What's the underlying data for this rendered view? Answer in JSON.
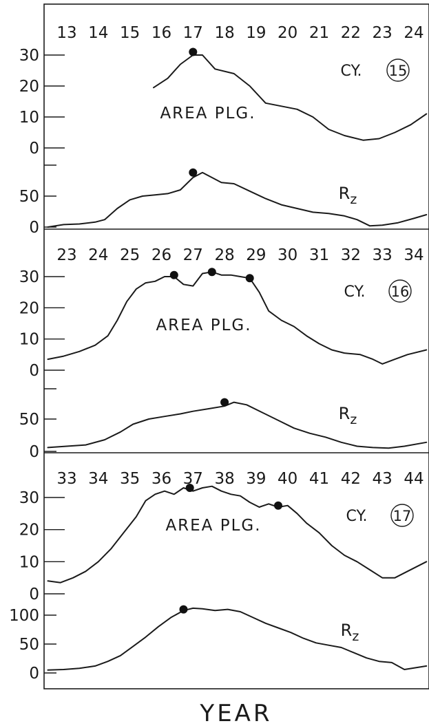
{
  "xlabel": "YEAR",
  "chart_data": [
    {
      "type": "line",
      "cycle_label": "CY.",
      "cycle_number": "15",
      "year_ticks": [
        "13",
        "14",
        "15",
        "16",
        "17",
        "18",
        "19",
        "20",
        "21",
        "22",
        "23",
        "24"
      ],
      "area_axis": {
        "tick_labels": [
          "0",
          "10",
          "20",
          "30"
        ],
        "ylim": [
          0,
          35
        ]
      },
      "rz_axis": {
        "tick_labels": [
          "0",
          "50"
        ],
        "ylim": [
          0,
          100
        ]
      },
      "series": [
        {
          "name": "AREA PLG.",
          "x": [
            15.75,
            16.2,
            16.6,
            17.0,
            17.3,
            17.7,
            18.3,
            18.8,
            19.3,
            19.8,
            20.3,
            20.8,
            21.3,
            21.8,
            22.4,
            22.9,
            23.4,
            23.9,
            24.4
          ],
          "values": [
            19.5,
            22.5,
            27,
            30,
            30,
            25.5,
            24,
            20,
            14.5,
            13.5,
            12.5,
            10,
            6,
            4,
            2.5,
            3,
            5,
            7.5,
            11
          ],
          "peaks": [
            {
              "x": 17.0,
              "y": 31
            }
          ]
        },
        {
          "name": "Rz",
          "x": [
            12.4,
            12.9,
            13.4,
            13.9,
            14.2,
            14.6,
            15.0,
            15.4,
            15.8,
            16.2,
            16.6,
            17.0,
            17.3,
            17.6,
            17.9,
            18.3,
            18.8,
            19.3,
            19.8,
            20.3,
            20.8,
            21.3,
            21.8,
            22.2,
            22.6,
            23.0,
            23.5,
            24.0,
            24.4
          ],
          "values": [
            0,
            4,
            5,
            8,
            12,
            30,
            44,
            50,
            52,
            54,
            60,
            80,
            88,
            80,
            72,
            70,
            58,
            46,
            36,
            30,
            24,
            22,
            18,
            12,
            2,
            3,
            7,
            14,
            20
          ],
          "peaks": [
            {
              "x": 17.0,
              "y": 88
            }
          ]
        }
      ]
    },
    {
      "type": "line",
      "cycle_label": "CY.",
      "cycle_number": "16",
      "year_ticks": [
        "23",
        "24",
        "25",
        "26",
        "27",
        "28",
        "29",
        "30",
        "31",
        "32",
        "33",
        "34"
      ],
      "area_axis": {
        "tick_labels": [
          "0",
          "10",
          "20",
          "30"
        ],
        "ylim": [
          0,
          35
        ]
      },
      "rz_axis": {
        "tick_labels": [
          "0",
          "50"
        ],
        "ylim": [
          0,
          100
        ]
      },
      "series": [
        {
          "name": "AREA PLG.",
          "x": [
            22.4,
            22.9,
            23.4,
            23.9,
            24.3,
            24.6,
            24.9,
            25.2,
            25.5,
            25.8,
            26.1,
            26.4,
            26.7,
            27.0,
            27.3,
            27.6,
            27.9,
            28.2,
            28.5,
            28.8,
            29.1,
            29.4,
            29.8,
            30.2,
            30.6,
            31.0,
            31.4,
            31.8,
            32.3,
            32.7,
            33.0,
            33.4,
            33.8,
            34.4
          ],
          "values": [
            3.5,
            4.5,
            6,
            8,
            11,
            16,
            22,
            26,
            28,
            28.5,
            30,
            30,
            27.5,
            27,
            31,
            31.5,
            30.5,
            30.5,
            30,
            29.5,
            25,
            19,
            16,
            14,
            11,
            8.5,
            6.5,
            5.5,
            5,
            3.5,
            2,
            3.5,
            5,
            6.5
          ],
          "peaks": [
            {
              "x": 26.4,
              "y": 30.5
            },
            {
              "x": 27.6,
              "y": 31.5
            },
            {
              "x": 28.8,
              "y": 29.5
            }
          ]
        },
        {
          "name": "Rz",
          "x": [
            22.4,
            23.0,
            23.6,
            24.2,
            24.7,
            25.1,
            25.6,
            26.1,
            26.6,
            27.0,
            27.5,
            28.0,
            28.3,
            28.7,
            29.2,
            29.7,
            30.2,
            30.7,
            31.2,
            31.7,
            32.2,
            32.7,
            33.2,
            33.7,
            34.4
          ],
          "values": [
            6,
            8,
            10,
            18,
            30,
            42,
            50,
            54,
            58,
            62,
            66,
            70,
            76,
            72,
            60,
            48,
            36,
            28,
            22,
            14,
            8,
            6,
            5,
            8,
            14
          ],
          "peaks": [
            {
              "x": 28.0,
              "y": 76
            }
          ]
        }
      ]
    },
    {
      "type": "line",
      "cycle_label": "CY.",
      "cycle_number": "17",
      "year_ticks": [
        "33",
        "34",
        "35",
        "36",
        "37",
        "38",
        "39",
        "40",
        "41",
        "42",
        "43",
        "44"
      ],
      "area_axis": {
        "tick_labels": [
          "0",
          "10",
          "20",
          "30"
        ],
        "ylim": [
          0,
          35
        ]
      },
      "rz_axis": {
        "tick_labels": [
          "0",
          "50",
          "100"
        ],
        "ylim": [
          0,
          120
        ]
      },
      "series": [
        {
          "name": "AREA PLG.",
          "x": [
            32.4,
            32.8,
            33.2,
            33.6,
            34.0,
            34.4,
            34.8,
            35.2,
            35.5,
            35.8,
            36.1,
            36.4,
            36.7,
            37.0,
            37.3,
            37.6,
            37.9,
            38.2,
            38.5,
            38.8,
            39.1,
            39.4,
            39.7,
            40.0,
            40.3,
            40.6,
            41.0,
            41.4,
            41.8,
            42.2,
            42.6,
            43.0,
            43.4,
            43.8,
            44.4
          ],
          "values": [
            4,
            3.5,
            5,
            7,
            10,
            14,
            19,
            24,
            29,
            31,
            32,
            31,
            33,
            32,
            33,
            33.5,
            32,
            31,
            30.5,
            28.5,
            27,
            28,
            27,
            27.5,
            25,
            22,
            19,
            15,
            12,
            10,
            7.5,
            5,
            5,
            7,
            10
          ],
          "peaks": [
            {
              "x": 36.9,
              "y": 33
            },
            {
              "x": 39.7,
              "y": 27.5
            }
          ]
        },
        {
          "name": "Rz",
          "x": [
            32.4,
            32.9,
            33.4,
            33.9,
            34.3,
            34.7,
            35.1,
            35.5,
            35.9,
            36.3,
            36.7,
            37.0,
            37.3,
            37.7,
            38.1,
            38.5,
            38.9,
            39.3,
            39.7,
            40.1,
            40.5,
            40.9,
            41.3,
            41.7,
            42.1,
            42.5,
            42.9,
            43.3,
            43.7,
            44.4
          ],
          "values": [
            5,
            6,
            8,
            12,
            20,
            30,
            46,
            62,
            80,
            96,
            108,
            112,
            111,
            108,
            110,
            106,
            96,
            86,
            78,
            70,
            60,
            52,
            48,
            44,
            35,
            26,
            20,
            18,
            6,
            12
          ],
          "peaks": [
            {
              "x": 36.7,
              "y": 110
            }
          ]
        }
      ]
    }
  ]
}
